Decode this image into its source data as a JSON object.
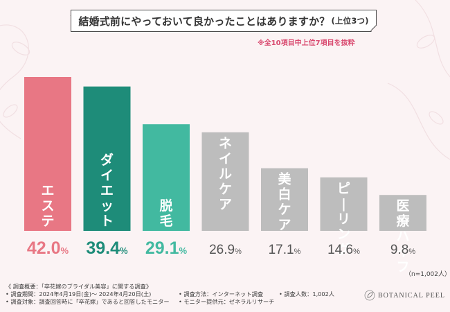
{
  "title": {
    "main": "結婚式前にやっておいて良かったことはありますか？",
    "sub": "(上位3つ)"
  },
  "note": "※全10項目中上位7項目を抜粋",
  "sample_size": "（n=1,002人）",
  "chart_data": {
    "type": "bar",
    "title": "結婚式前にやっておいて良かったことはありますか？(上位3つ)",
    "categories": [
      "エステ",
      "ダイエット",
      "脱毛",
      "ネイルケア",
      "美白ケア",
      "ピーリング",
      "医療ハイフ"
    ],
    "values": [
      42.0,
      39.4,
      29.1,
      26.9,
      17.1,
      14.6,
      9.8
    ],
    "value_labels": [
      {
        "num": "42.0",
        "unit": "%"
      },
      {
        "num": "39.4",
        "unit": "%"
      },
      {
        "num": "29.1",
        "unit": "%"
      },
      {
        "num": "26.9",
        "unit": "%"
      },
      {
        "num": "17.1",
        "unit": "%"
      },
      {
        "num": "14.6",
        "unit": "%"
      },
      {
        "num": "9.8",
        "unit": "%"
      }
    ],
    "ylim": [
      0,
      42.0
    ],
    "xlabel": "",
    "ylabel": "",
    "grid": false,
    "colors": [
      "#e87784",
      "#1e8c79",
      "#42b9a0",
      "#bdbdbd",
      "#bdbdbd",
      "#bdbdbd",
      "#bdbdbd"
    ],
    "label_colors": [
      "#e87784",
      "#1e8c79",
      "#42b9a0",
      "#555555",
      "#555555",
      "#555555",
      "#555555"
    ]
  },
  "footer": {
    "overview": "《 調査概要：「卒花嫁のブライダル美容」に関する調査》",
    "period": "• 調査期間：2024年4月19日(金)～ 2024年4月20日(土)",
    "target": "• 調査対象：調査回答時に「卒花嫁」であると回答したモニター",
    "method": "• 調査方法：インターネット調査",
    "provider": "• モニター提供元：ゼネラルリサーチ",
    "count": "• 調査人数：1,002人"
  },
  "logo": {
    "text": "BOTANICAL PEEL",
    "icon": "leaf-icon"
  }
}
